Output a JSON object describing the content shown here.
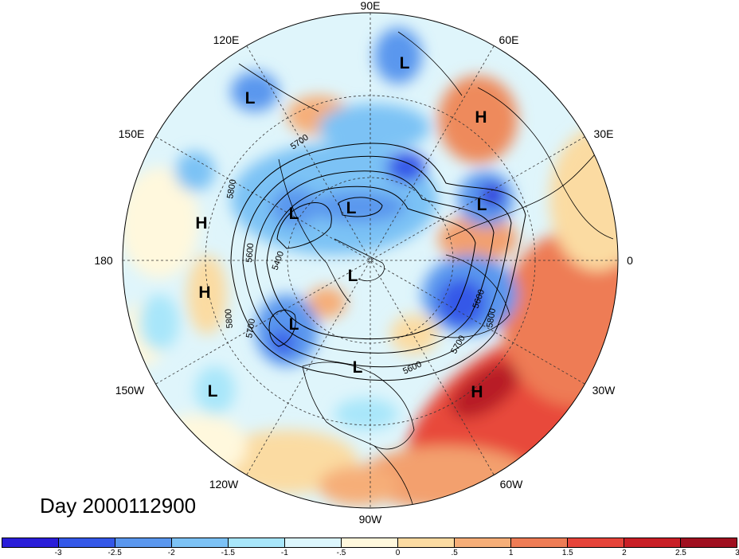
{
  "map": {
    "projection": "north-polar-stereographic",
    "field_shading": "anomaly",
    "contour_field": "geopotential height",
    "longitude_labels": [
      "90E",
      "60E",
      "30E",
      "0",
      "30W",
      "60W",
      "90W",
      "120W",
      "150W",
      "180",
      "150E",
      "120E"
    ],
    "pressure_centers": [
      {
        "type": "L",
        "region": "Siberia (north)"
      },
      {
        "type": "L",
        "region": "Northeast Asia"
      },
      {
        "type": "H",
        "region": "Ural"
      },
      {
        "type": "L",
        "region": "Northern Europe"
      },
      {
        "type": "L",
        "region": "Arctic (Asian side)"
      },
      {
        "type": "L",
        "region": "Arctic"
      },
      {
        "type": "H",
        "region": "North Pacific (west)"
      },
      {
        "type": "L",
        "region": "North Pole"
      },
      {
        "type": "H",
        "region": "North Pacific (east)"
      },
      {
        "type": "L",
        "region": "Gulf of Alaska"
      },
      {
        "type": "L",
        "region": "Eastern North America"
      },
      {
        "type": "H",
        "region": "Subtropical Atlantic"
      },
      {
        "type": "L",
        "region": "Subtropical Pacific"
      }
    ],
    "contour_labels": [
      "5700",
      "5800",
      "5600",
      "5400",
      "5800",
      "5700",
      "5600",
      "5800",
      "5700",
      "5600"
    ]
  },
  "date_label": "Day 2000112900",
  "colorbar": {
    "colors": [
      "#2a1ed9",
      "#3458e8",
      "#5a97ee",
      "#7cc2f5",
      "#a8e6fa",
      "#dcf6fd",
      "#fff8dd",
      "#fbdba2",
      "#f6ae78",
      "#ee7c55",
      "#e6443a",
      "#c91f26",
      "#a01020"
    ],
    "tick_labels": [
      "-3",
      "-2.5",
      "-2",
      "-1.5",
      "-1",
      "-.5",
      "0",
      ".5",
      "1",
      "1.5",
      "2",
      "2.5",
      "3"
    ]
  }
}
